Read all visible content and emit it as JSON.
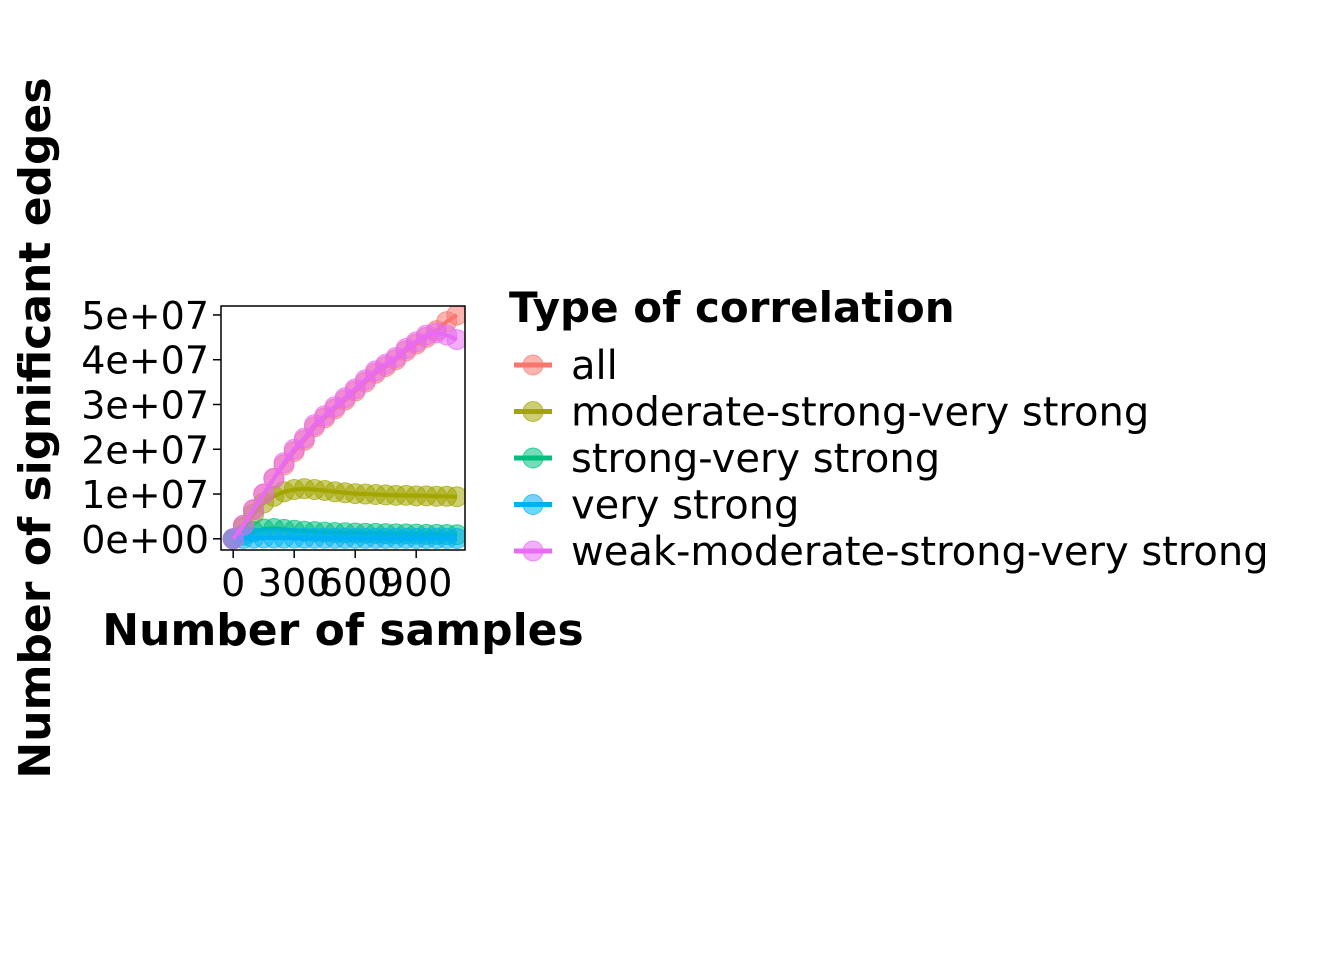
{
  "chart_data": {
    "type": "scatter",
    "title": "",
    "xlabel": "Number of samples",
    "ylabel": "Number of significant edges",
    "xlim": [
      -60,
      1140
    ],
    "ylim": [
      -2500000,
      52000000
    ],
    "x_ticks": [
      0,
      300,
      600,
      900
    ],
    "x_tick_labels": [
      "0",
      "300",
      "600",
      "900"
    ],
    "y_ticks": [
      0,
      10000000,
      20000000,
      30000000,
      40000000,
      50000000
    ],
    "y_tick_labels": [
      "0e+00",
      "1e+07",
      "2e+07",
      "3e+07",
      "4e+07",
      "5e+07"
    ],
    "grid": false,
    "legend": {
      "title": "Type of correlation",
      "position": "right"
    },
    "series": [
      {
        "name": "all",
        "color": "#F8766D",
        "x": [
          0,
          50,
          100,
          150,
          200,
          250,
          300,
          350,
          400,
          450,
          500,
          550,
          600,
          650,
          700,
          750,
          800,
          850,
          900,
          950,
          1000,
          1050,
          1100
        ],
        "y": [
          0,
          3000000,
          6500000,
          10000000,
          13500000,
          16500000,
          19500000,
          22000000,
          25000000,
          27000000,
          29000000,
          31000000,
          33000000,
          35000000,
          37000000,
          38500000,
          40000000,
          42000000,
          43500000,
          45000000,
          46500000,
          48500000,
          50000000
        ]
      },
      {
        "name": "moderate-strong-very strong",
        "color": "#A3A500",
        "x": [
          0,
          50,
          100,
          150,
          200,
          250,
          300,
          350,
          400,
          450,
          500,
          550,
          600,
          650,
          700,
          750,
          800,
          850,
          900,
          950,
          1000,
          1050,
          1100
        ],
        "y": [
          0,
          2500000,
          5500000,
          8000000,
          9500000,
          10500000,
          11000000,
          11200000,
          11000000,
          10800000,
          10500000,
          10300000,
          10100000,
          10000000,
          9900000,
          9800000,
          9700000,
          9700000,
          9600000,
          9600000,
          9500000,
          9500000,
          9400000
        ]
      },
      {
        "name": "strong-very strong",
        "color": "#00BF7D",
        "x": [
          0,
          50,
          100,
          150,
          200,
          250,
          300,
          350,
          400,
          450,
          500,
          550,
          600,
          650,
          700,
          750,
          800,
          850,
          900,
          950,
          1000,
          1050,
          1100
        ],
        "y": [
          0,
          800000,
          1600000,
          2200000,
          2300000,
          2100000,
          1900000,
          1700000,
          1600000,
          1500000,
          1400000,
          1350000,
          1300000,
          1250000,
          1200000,
          1150000,
          1100000,
          1100000,
          1050000,
          1000000,
          1000000,
          950000,
          900000
        ]
      },
      {
        "name": "very strong",
        "color": "#00B0F6",
        "x": [
          0,
          50,
          100,
          150,
          200,
          250,
          300,
          350,
          400,
          450,
          500,
          550,
          600,
          650,
          700,
          750,
          800,
          850,
          900,
          950,
          1000,
          1050,
          1100
        ],
        "y": [
          0,
          100000,
          150000,
          180000,
          170000,
          160000,
          150000,
          140000,
          130000,
          125000,
          120000,
          115000,
          110000,
          105000,
          100000,
          100000,
          95000,
          95000,
          90000,
          90000,
          85000,
          85000,
          80000
        ]
      },
      {
        "name": "weak-moderate-strong-very strong",
        "color": "#E76BF3",
        "x": [
          0,
          50,
          100,
          150,
          200,
          250,
          300,
          350,
          400,
          450,
          500,
          550,
          600,
          650,
          700,
          750,
          800,
          850,
          900,
          950,
          1000,
          1050,
          1100
        ],
        "y": [
          0,
          3000000,
          6500000,
          10000000,
          13500000,
          17000000,
          20000000,
          22500000,
          25500000,
          27500000,
          29500000,
          31500000,
          33500000,
          35500000,
          37500000,
          39000000,
          40500000,
          42500000,
          44000000,
          45500000,
          46000000,
          45500000,
          44500000
        ]
      }
    ]
  }
}
